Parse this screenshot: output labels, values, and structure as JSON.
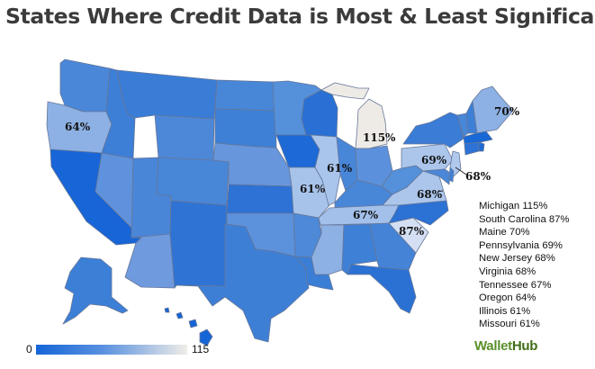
{
  "title": "States Where Credit Data is Most & Least Significant",
  "colors": {
    "base": "#3c7fd6",
    "dark": "#1565d8",
    "mid": "#5f93dc",
    "light": "#8db1e4",
    "pale": "#eeebe6",
    "border": "#667799"
  },
  "map_labels": [
    {
      "state": "Oregon",
      "text": "64%"
    },
    {
      "state": "Maine",
      "text": "70%"
    },
    {
      "state": "Michigan",
      "text": "115%"
    },
    {
      "state": "Illinois",
      "text": "61%"
    },
    {
      "state": "Missouri",
      "text": "61%"
    },
    {
      "state": "Pennsylvania",
      "text": "69%"
    },
    {
      "state": "New Jersey",
      "text": "68%"
    },
    {
      "state": "Virginia",
      "text": "68%"
    },
    {
      "state": "Tennessee",
      "text": "67%"
    },
    {
      "state": "South Carolina",
      "text": "87%"
    }
  ],
  "legend_items": [
    {
      "state": "Michigan",
      "value": "115%",
      "text": "Michigan 115%"
    },
    {
      "state": "South Carolina",
      "value": "87%",
      "text": "South Carolina 87%"
    },
    {
      "state": "Maine",
      "value": "70%",
      "text": "Maine 70%"
    },
    {
      "state": "Pennsylvania",
      "value": "69%",
      "text": "Pennsylvania 69%"
    },
    {
      "state": "New Jersey",
      "value": "68%",
      "text": "New Jersey 68%"
    },
    {
      "state": "Virginia",
      "value": "68%",
      "text": "Virginia 68%"
    },
    {
      "state": "Tennessee",
      "value": "67%",
      "text": "Tennessee 67%"
    },
    {
      "state": "Oregon",
      "value": "64%",
      "text": "Oregon 64%"
    },
    {
      "state": "Illinois",
      "value": "61%",
      "text": "Illinois 61%"
    },
    {
      "state": "Missouri",
      "value": "61%",
      "text": "Missouri 61%"
    }
  ],
  "scale": {
    "min_label": "0",
    "max_label": "115",
    "min": 0,
    "max": 115
  },
  "brand": {
    "part1": "Wallet",
    "part2": "Hub"
  }
}
